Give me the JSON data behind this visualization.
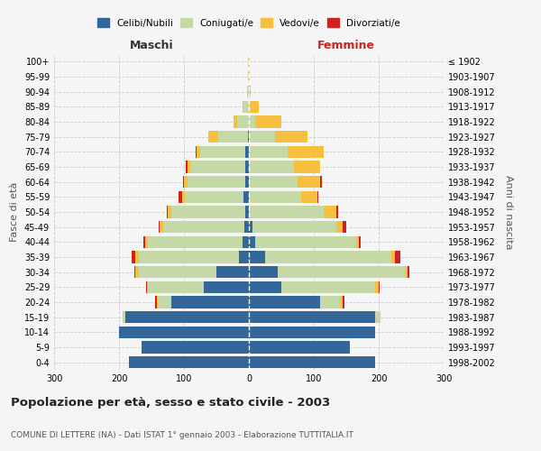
{
  "age_groups": [
    "0-4",
    "5-9",
    "10-14",
    "15-19",
    "20-24",
    "25-29",
    "30-34",
    "35-39",
    "40-44",
    "45-49",
    "50-54",
    "55-59",
    "60-64",
    "65-69",
    "70-74",
    "75-79",
    "80-84",
    "85-89",
    "90-94",
    "95-99",
    "100+"
  ],
  "birth_years": [
    "1998-2002",
    "1993-1997",
    "1988-1992",
    "1983-1987",
    "1978-1982",
    "1973-1977",
    "1968-1972",
    "1963-1967",
    "1958-1962",
    "1953-1957",
    "1948-1952",
    "1943-1947",
    "1938-1942",
    "1933-1937",
    "1928-1932",
    "1923-1927",
    "1918-1922",
    "1913-1917",
    "1908-1912",
    "1903-1907",
    "≤ 1902"
  ],
  "maschi_celibi": [
    185,
    165,
    200,
    190,
    120,
    70,
    50,
    15,
    10,
    7,
    5,
    8,
    5,
    5,
    5,
    2,
    0,
    0,
    0,
    0,
    0
  ],
  "maschi_coniugati": [
    0,
    0,
    0,
    5,
    20,
    85,
    120,
    155,
    145,
    125,
    115,
    90,
    90,
    85,
    70,
    45,
    18,
    8,
    3,
    1,
    1
  ],
  "maschi_vedovi": [
    0,
    0,
    0,
    0,
    2,
    2,
    5,
    5,
    5,
    5,
    5,
    5,
    5,
    5,
    5,
    15,
    6,
    2,
    0,
    0,
    0
  ],
  "maschi_divorziati": [
    0,
    0,
    0,
    0,
    2,
    2,
    2,
    5,
    2,
    2,
    2,
    5,
    2,
    2,
    2,
    0,
    0,
    0,
    0,
    0,
    0
  ],
  "femmine_celibi": [
    195,
    155,
    195,
    195,
    110,
    50,
    45,
    25,
    10,
    5,
    0,
    0,
    0,
    0,
    0,
    0,
    0,
    0,
    0,
    0,
    0
  ],
  "femmine_coniugati": [
    0,
    0,
    0,
    8,
    30,
    145,
    195,
    195,
    155,
    130,
    115,
    80,
    75,
    70,
    60,
    40,
    10,
    0,
    0,
    0,
    0
  ],
  "femmine_vedovi": [
    0,
    0,
    0,
    0,
    5,
    5,
    5,
    5,
    5,
    10,
    20,
    25,
    35,
    40,
    55,
    50,
    40,
    15,
    3,
    1,
    1
  ],
  "femmine_divorziati": [
    0,
    0,
    0,
    0,
    2,
    2,
    2,
    8,
    2,
    5,
    2,
    2,
    2,
    0,
    0,
    0,
    0,
    0,
    0,
    0,
    0
  ],
  "color_celibi": "#336699",
  "color_coniugati": "#c5d9a8",
  "color_vedovi": "#f5c040",
  "color_divorziati": "#cc2222",
  "bg_color": "#f5f5f5",
  "grid_color": "#cccccc",
  "title": "Popolazione per età, sesso e stato civile - 2003",
  "subtitle": "COMUNE DI LETTERE (NA) - Dati ISTAT 1° gennaio 2003 - Elaborazione TUTTITALIA.IT",
  "xlabel_left": "Maschi",
  "xlabel_right": "Femmine",
  "ylabel_left": "Fasce di età",
  "ylabel_right": "Anni di nascita",
  "xlim": 300,
  "legend_labels": [
    "Celibi/Nubili",
    "Coniugati/e",
    "Vedovi/e",
    "Divorziati/e"
  ]
}
